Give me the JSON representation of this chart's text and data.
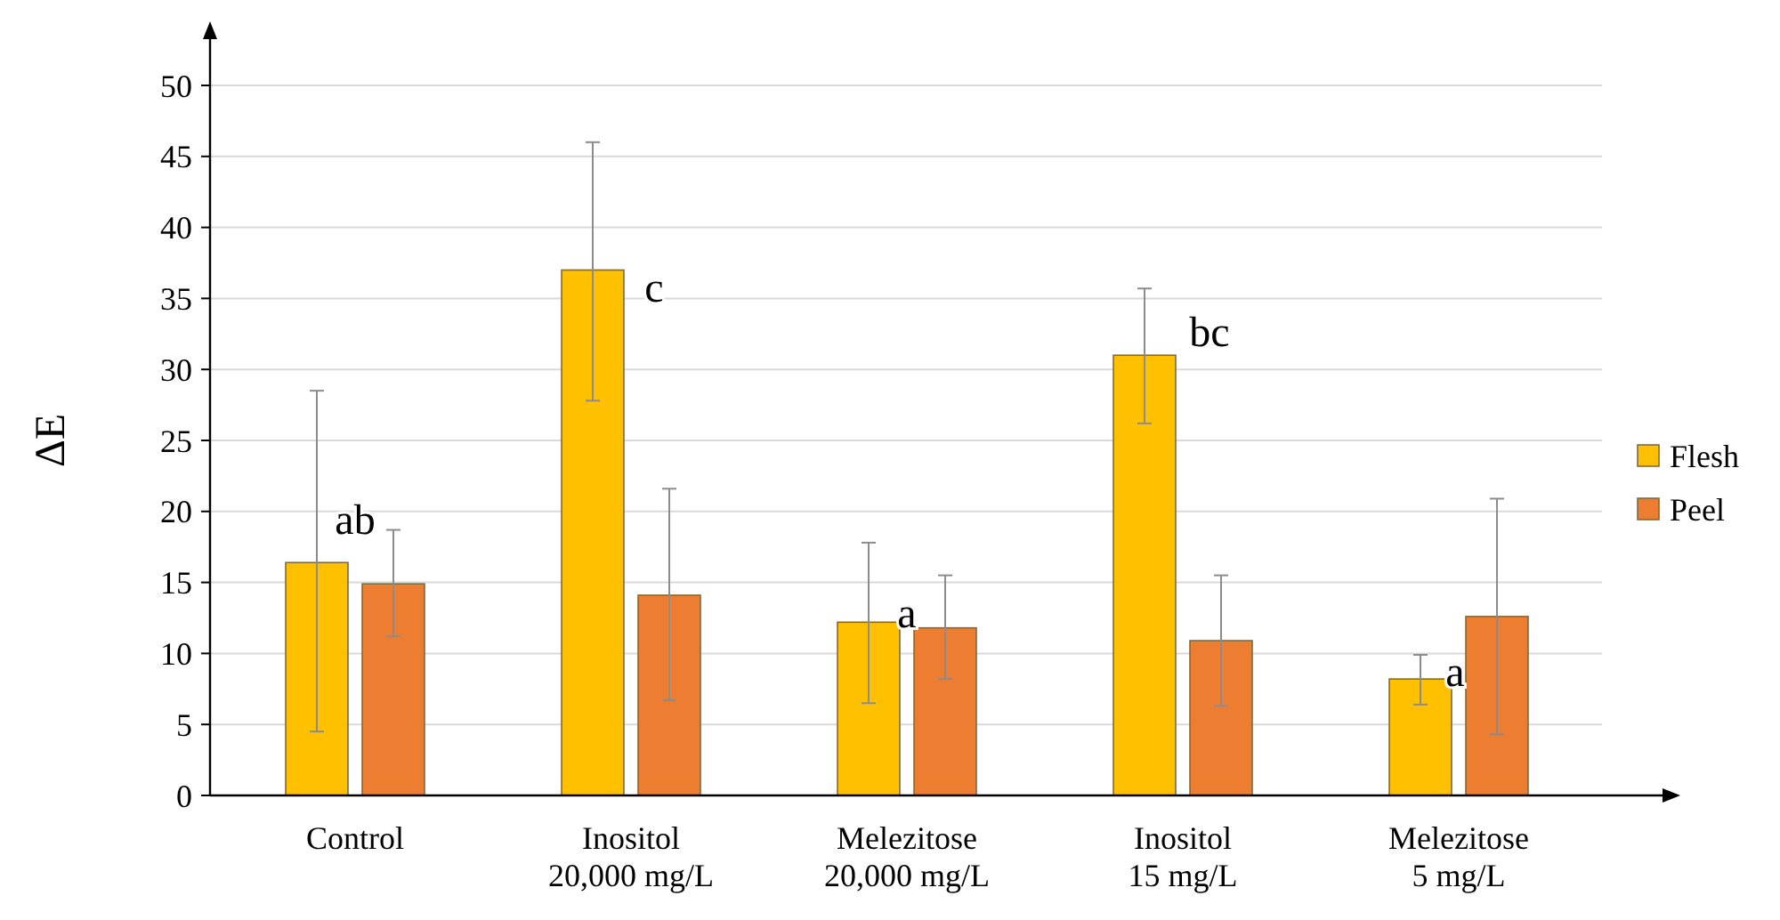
{
  "chart_data": {
    "type": "bar",
    "ylabel": "ΔE",
    "categories": [
      "Control",
      "Inositol\n20,000 mg/L",
      "Melezitose\n20,000 mg/L",
      "Inositol\n15 mg/L",
      "Melezitose\n5 mg/L"
    ],
    "series": [
      {
        "name": "Flesh",
        "color": "#ffc000",
        "values": [
          16.4,
          37,
          12.2,
          31,
          8.2
        ],
        "errors": [
          [
            4.5,
            28.5
          ],
          [
            27.8,
            46
          ],
          [
            6.5,
            17.8
          ],
          [
            26.2,
            35.7
          ],
          [
            6.4,
            9.9
          ]
        ]
      },
      {
        "name": "Peel",
        "color": "#ed7d31",
        "values": [
          14.9,
          14.1,
          11.8,
          10.9,
          12.6
        ],
        "errors": [
          [
            11.2,
            18.7
          ],
          [
            6.7,
            21.6
          ],
          [
            8.2,
            15.5
          ],
          [
            6.3,
            15.5
          ],
          [
            4.3,
            20.9
          ]
        ]
      }
    ],
    "ylim": [
      0,
      50
    ],
    "yticks": [
      0,
      5,
      10,
      15,
      20,
      25,
      30,
      35,
      40,
      45,
      50
    ],
    "grid": "y",
    "legend": "right",
    "annotations": [
      "ab",
      "c",
      "a",
      "bc",
      "a"
    ]
  }
}
